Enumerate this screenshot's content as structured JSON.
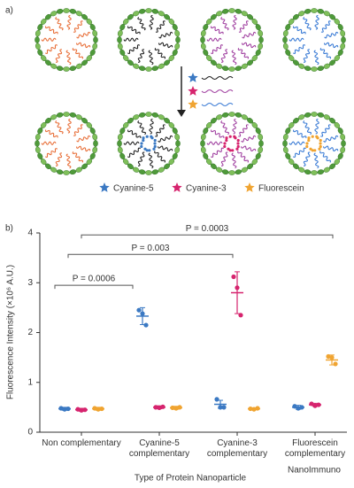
{
  "panel_a_label": "a)",
  "panel_b_label": "b)",
  "watermark": "NanoImmuno",
  "chart_data": {
    "type": "dotplot",
    "y_label": "Fluorescence Intensity (×10⁶ A.U.)",
    "x_label": "Type of Protein Nanoparticle",
    "categories": [
      "Non complementary",
      "Cyanine-5 complementary",
      "Cyanine-3 complementary",
      "Fluorescein complementary"
    ],
    "ylim": [
      0,
      4
    ],
    "yticks": [
      0,
      1,
      2,
      3,
      4
    ],
    "series": [
      {
        "name": "Cyanine-5",
        "color": "#3b79c3",
        "values": [
          0.47,
          2.33,
          0.56,
          0.5
        ],
        "errors": [
          0.03,
          0.17,
          0.08,
          0.04
        ],
        "points": [
          [
            0.48,
            0.46,
            0.47
          ],
          [
            2.45,
            2.38,
            2.15
          ],
          [
            0.66,
            0.5,
            0.5
          ],
          [
            0.52,
            0.48,
            0.5
          ]
        ]
      },
      {
        "name": "Cyanine-3",
        "color": "#d6246e",
        "values": [
          0.45,
          0.5,
          2.8,
          0.55
        ],
        "errors": [
          0.03,
          0.03,
          0.42,
          0.03
        ],
        "points": [
          [
            0.46,
            0.44,
            0.45
          ],
          [
            0.5,
            0.49,
            0.51
          ],
          [
            3.12,
            2.9,
            2.35
          ],
          [
            0.57,
            0.53,
            0.55
          ]
        ]
      },
      {
        "name": "Fluorescein",
        "color": "#f0a431",
        "values": [
          0.47,
          0.49,
          0.47,
          1.45
        ],
        "errors": [
          0.03,
          0.03,
          0.02,
          0.1
        ],
        "points": [
          [
            0.48,
            0.46,
            0.47
          ],
          [
            0.49,
            0.48,
            0.5
          ],
          [
            0.47,
            0.46,
            0.48
          ],
          [
            1.52,
            1.5,
            1.37
          ]
        ]
      }
    ],
    "annotations": [
      {
        "text": "P = 0.0006",
        "y": 2.95
      },
      {
        "text": "P = 0.003",
        "y": 3.57
      },
      {
        "text": "P = 0.0003",
        "y": 3.96
      }
    ]
  }
}
